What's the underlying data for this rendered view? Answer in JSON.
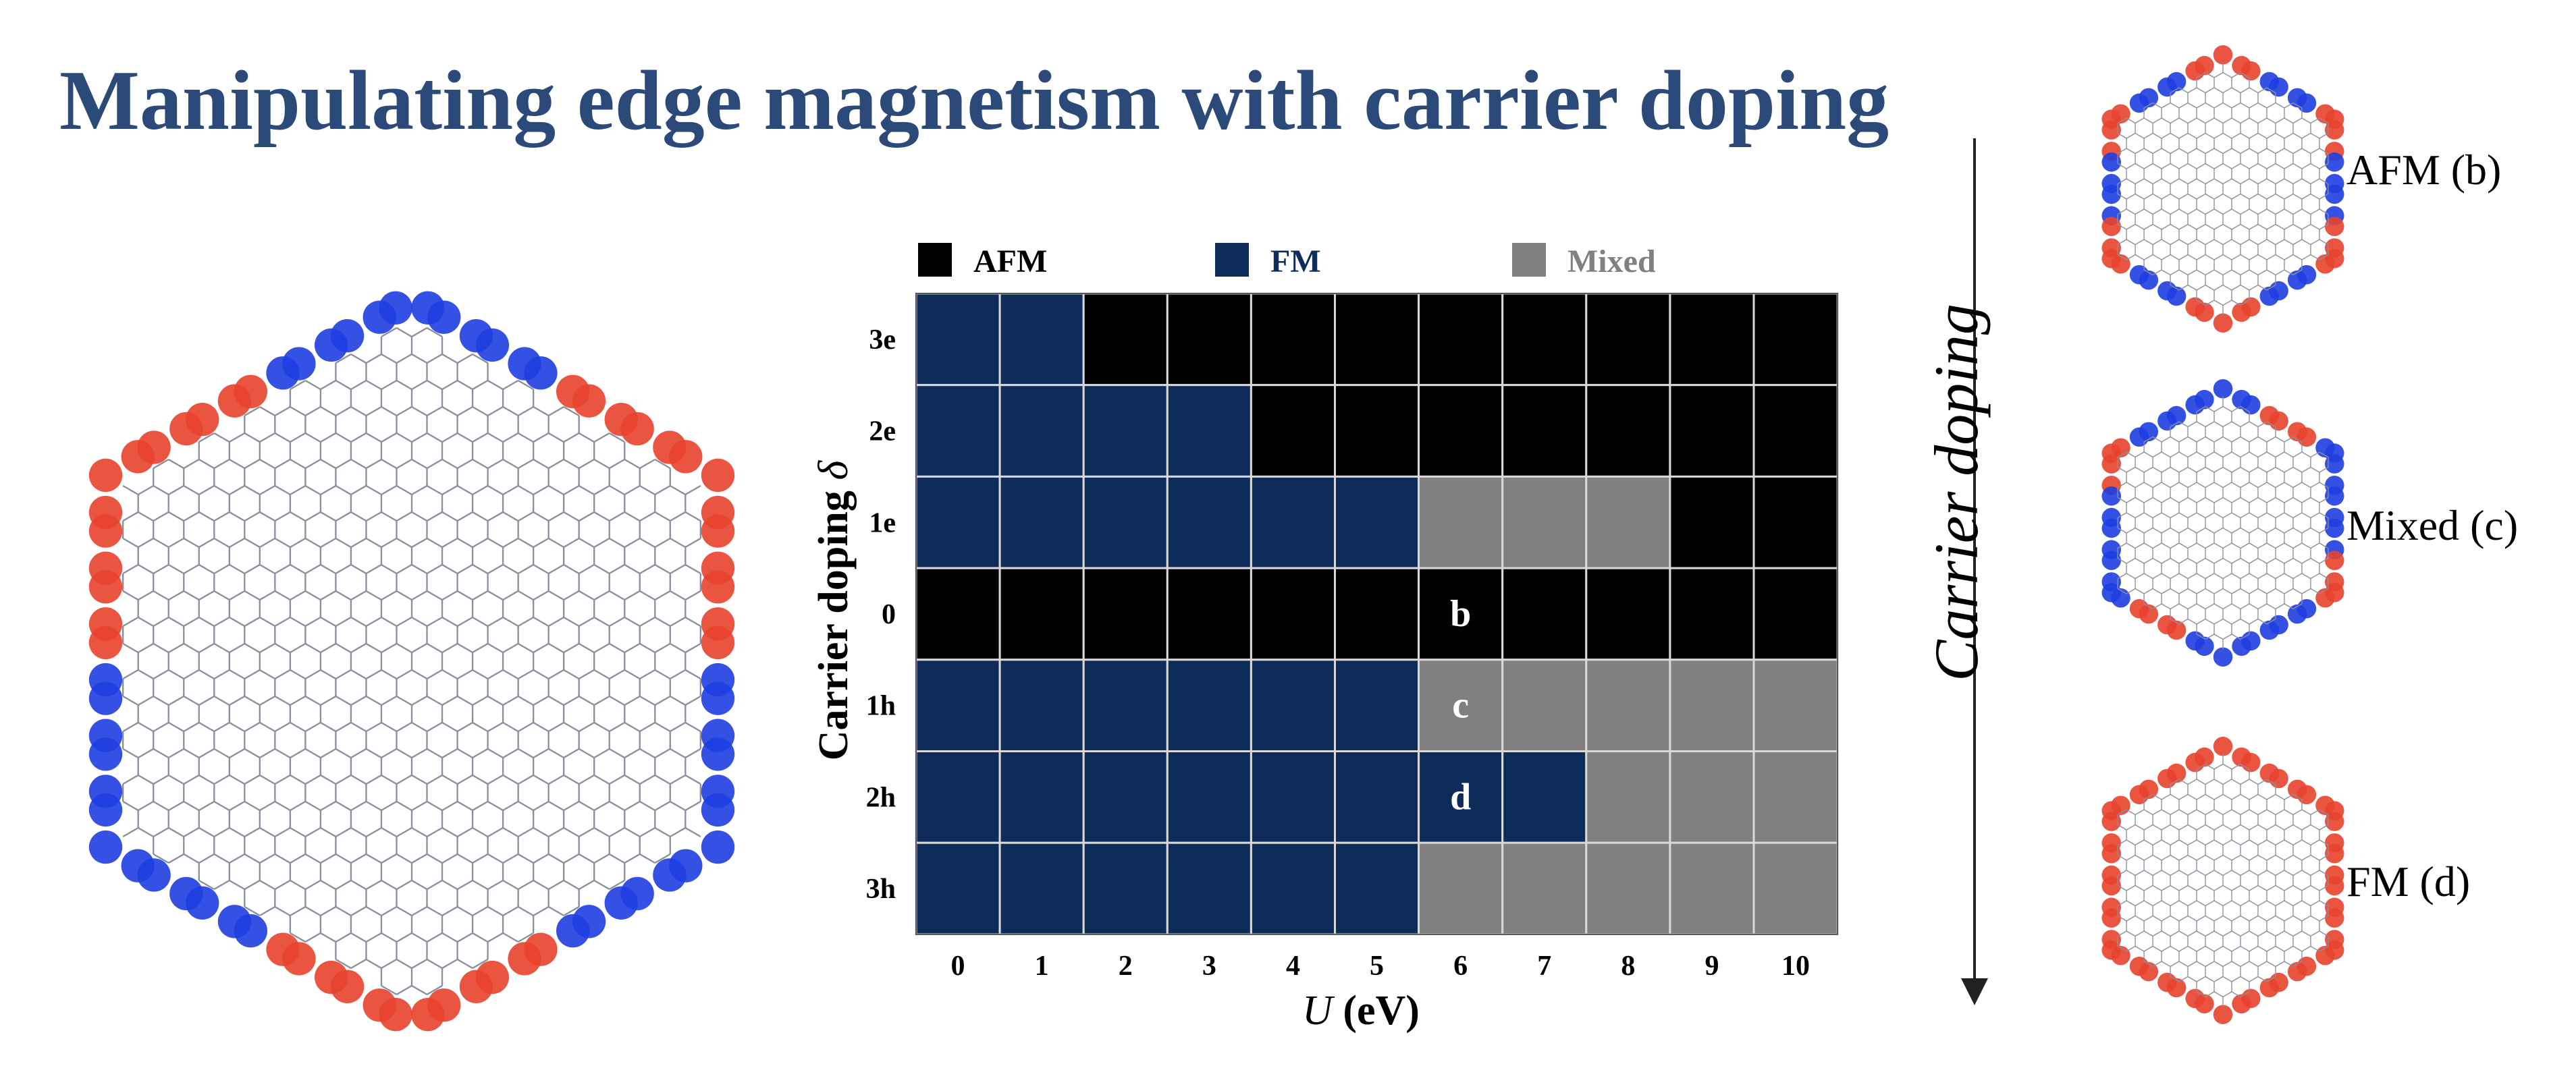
{
  "title": "Manipulating edge magnetism with carrier doping",
  "side": {
    "arrow_label": "Carrier doping",
    "phases": [
      "AFM (b)",
      "Mixed (c)",
      "FM (d)"
    ]
  },
  "colors": {
    "AFM": "#000000",
    "FM": "#0e2c59",
    "Mixed": "#808080",
    "spin_up": "#e8432e",
    "spin_down": "#1f3ee0",
    "title": "#2b4a7a"
  },
  "chart_data": {
    "type": "heatmap",
    "title": "",
    "xlabel_symbol": "U",
    "xlabel_unit": " (eV)",
    "ylabel": "Carrier doping",
    "ylabel_symbol": "δ",
    "x": [
      "0",
      "1",
      "2",
      "3",
      "4",
      "5",
      "6",
      "7",
      "8",
      "9",
      "10"
    ],
    "y": [
      "3e",
      "2e",
      "1e",
      "0",
      "1h",
      "2h",
      "3h"
    ],
    "legend": [
      {
        "label": "AFM",
        "color": "#000000",
        "text_color": "#000000"
      },
      {
        "label": "FM",
        "color": "#0e2c59",
        "text_color": "#0e2c59"
      },
      {
        "label": "Mixed",
        "color": "#808080",
        "text_color": "#808080"
      }
    ],
    "legend_position": "top",
    "grid": true,
    "values": [
      [
        "FM",
        "FM",
        "AFM",
        "AFM",
        "AFM",
        "AFM",
        "AFM",
        "AFM",
        "AFM",
        "AFM",
        "AFM"
      ],
      [
        "FM",
        "FM",
        "FM",
        "FM",
        "AFM",
        "AFM",
        "AFM",
        "AFM",
        "AFM",
        "AFM",
        "AFM"
      ],
      [
        "FM",
        "FM",
        "FM",
        "FM",
        "FM",
        "FM",
        "Mixed",
        "Mixed",
        "Mixed",
        "AFM",
        "AFM"
      ],
      [
        "AFM",
        "AFM",
        "AFM",
        "AFM",
        "AFM",
        "AFM",
        "AFM",
        "AFM",
        "AFM",
        "AFM",
        "AFM"
      ],
      [
        "FM",
        "FM",
        "FM",
        "FM",
        "FM",
        "FM",
        "Mixed",
        "Mixed",
        "Mixed",
        "Mixed",
        "Mixed"
      ],
      [
        "FM",
        "FM",
        "FM",
        "FM",
        "FM",
        "FM",
        "FM",
        "FM",
        "Mixed",
        "Mixed",
        "Mixed"
      ],
      [
        "FM",
        "FM",
        "FM",
        "FM",
        "FM",
        "FM",
        "Mixed",
        "Mixed",
        "Mixed",
        "Mixed",
        "Mixed"
      ]
    ],
    "annotations": [
      {
        "text": "b",
        "x": "6",
        "y": "0"
      },
      {
        "text": "c",
        "x": "6",
        "y": "1h"
      },
      {
        "text": "d",
        "x": "6",
        "y": "2h"
      }
    ]
  }
}
